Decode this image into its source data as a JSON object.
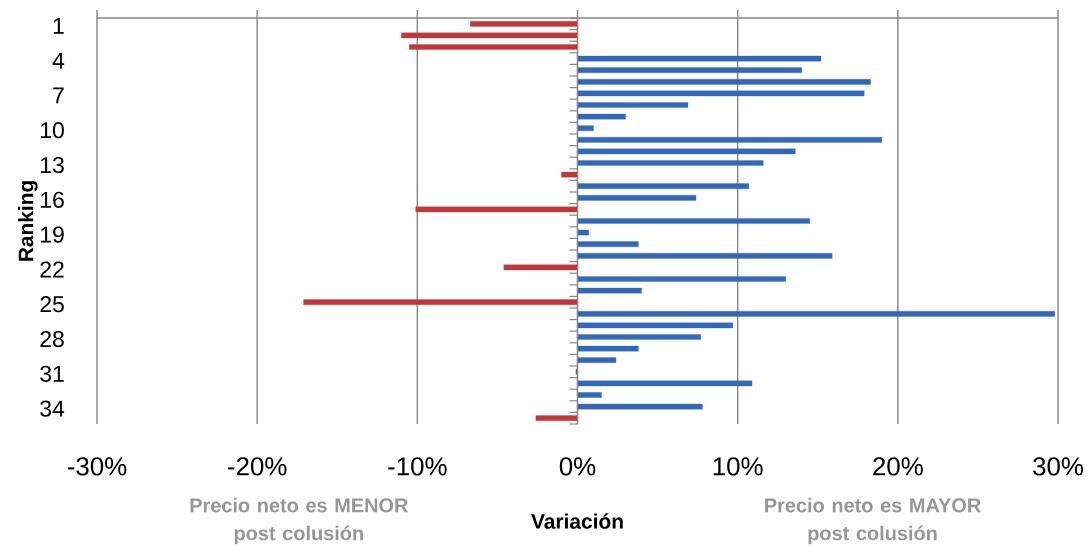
{
  "chart_data": {
    "type": "bar",
    "orientation": "horizontal",
    "xlabel": "Variación",
    "ylabel": "Ranking",
    "annotations": [
      "Precio neto es MENOR post colusión",
      "Precio neto es MAYOR post colusión"
    ],
    "categories": [
      "1",
      null,
      null,
      "4",
      null,
      null,
      "7",
      null,
      null,
      "10",
      null,
      null,
      "13",
      null,
      null,
      "16",
      null,
      null,
      "19",
      null,
      null,
      "22",
      null,
      null,
      "25",
      null,
      null,
      "28",
      null,
      null,
      "31",
      null,
      null,
      "34",
      null
    ],
    "values": [
      -6.7,
      -11.0,
      -10.5,
      15.2,
      14.0,
      18.3,
      17.9,
      6.9,
      3.0,
      1.0,
      19.0,
      13.6,
      11.6,
      -1.0,
      10.7,
      7.4,
      -10.1,
      14.5,
      0.7,
      3.8,
      15.9,
      -4.6,
      13.0,
      4.0,
      -17.1,
      29.8,
      9.7,
      7.7,
      3.8,
      2.4,
      -0.1,
      10.9,
      1.5,
      7.8,
      -2.6
    ],
    "colors": [
      "#c0373a",
      "#c0373a",
      "#c0373a",
      "#3367b8",
      "#3367b8",
      "#3367b8",
      "#3367b8",
      "#3367b8",
      "#3367b8",
      "#3367b8",
      "#3367b8",
      "#3367b8",
      "#3367b8",
      "#c0373a",
      "#3367b8",
      "#3367b8",
      "#c0373a",
      "#3367b8",
      "#3367b8",
      "#3367b8",
      "#3367b8",
      "#c0373a",
      "#3367b8",
      "#3367b8",
      "#c0373a",
      "#3367b8",
      "#3367b8",
      "#3367b8",
      "#3367b8",
      "#3367b8",
      "#c0373a",
      "#3367b8",
      "#3367b8",
      "#3367b8",
      "#c0373a"
    ],
    "xlim": [
      -30,
      30
    ],
    "xticks": [
      {
        "value": -30,
        "label": "-30%"
      },
      {
        "value": -20,
        "label": "-20%"
      },
      {
        "value": -10,
        "label": "-10%"
      },
      {
        "value": 0,
        "label": "0%"
      },
      {
        "value": 10,
        "label": "10%"
      },
      {
        "value": 20,
        "label": "20%"
      },
      {
        "value": 30,
        "label": "30%"
      }
    ],
    "grid": "x"
  }
}
